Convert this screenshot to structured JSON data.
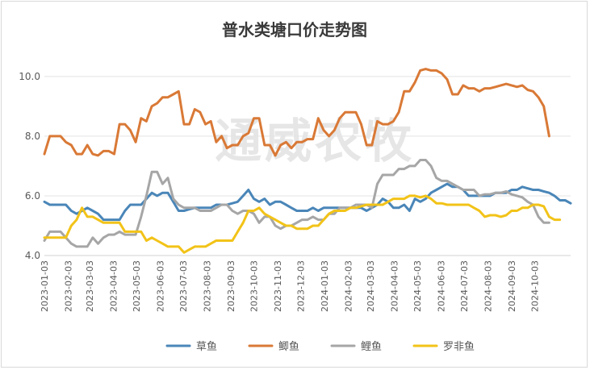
{
  "chart_data": {
    "type": "line",
    "title": "普水类塘口价走势图",
    "watermark": "通威农牧",
    "xlabel": "",
    "ylabel": "",
    "ylim": [
      4.0,
      10.4
    ],
    "yticks": [
      4.0,
      6.0,
      8.0,
      10.0
    ],
    "ytick_labels": [
      "4.0",
      "6.0",
      "8.0",
      "10.0"
    ],
    "grid": true,
    "legend_position": "bottom",
    "x_start": "2023-01-03",
    "x_interval_days": 7,
    "xtick_labels": [
      "2023-01-03",
      "2023-02-03",
      "2023-03-03",
      "2023-04-03",
      "2023-05-03",
      "2023-06-03",
      "2023-07-03",
      "2023-08-03",
      "2023-09-03",
      "2023-10-03",
      "2023-11-03",
      "2023-12-03",
      "2024-01-03",
      "2024-02-03",
      "2024-03-03",
      "2024-04-03",
      "2024-05-03",
      "2024-06-03",
      "2024-07-03",
      "2024-08-03",
      "2024-09-03",
      "2024-10-03"
    ],
    "xtick_dates": [
      "2023-01-03",
      "2023-02-03",
      "2023-03-03",
      "2023-04-03",
      "2023-05-03",
      "2023-06-03",
      "2023-07-03",
      "2023-08-03",
      "2023-09-03",
      "2023-10-03",
      "2023-11-03",
      "2023-12-03",
      "2024-01-03",
      "2024-02-03",
      "2024-03-03",
      "2024-04-03",
      "2024-05-03",
      "2024-06-03",
      "2024-07-03",
      "2024-08-03",
      "2024-09-03",
      "2024-10-03"
    ],
    "series": [
      {
        "name": "草鱼",
        "color": "#4a86b8",
        "values": [
          5.8,
          5.7,
          5.7,
          5.7,
          5.7,
          5.5,
          5.4,
          5.5,
          5.6,
          5.5,
          5.4,
          5.2,
          5.2,
          5.2,
          5.2,
          5.5,
          5.7,
          5.7,
          5.7,
          5.9,
          6.1,
          6.0,
          6.1,
          6.1,
          5.8,
          5.5,
          5.5,
          5.55,
          5.6,
          5.6,
          5.6,
          5.6,
          5.7,
          5.7,
          5.7,
          5.75,
          5.8,
          6.0,
          6.2,
          5.9,
          5.8,
          5.9,
          5.7,
          5.8,
          5.8,
          5.7,
          5.6,
          5.5,
          5.5,
          5.5,
          5.6,
          5.5,
          5.6,
          5.6,
          5.6,
          5.6,
          5.6,
          5.6,
          5.6,
          5.6,
          5.5,
          5.6,
          5.7,
          5.9,
          5.8,
          5.6,
          5.6,
          5.7,
          5.5,
          5.9,
          5.8,
          5.9,
          6.1,
          6.2,
          6.3,
          6.4,
          6.3,
          6.3,
          6.2,
          6.0,
          6.0,
          6.0,
          6.0,
          6.0,
          6.1,
          6.1,
          6.1,
          6.2,
          6.2,
          6.3,
          6.25,
          6.2,
          6.2,
          6.15,
          6.1,
          6.0,
          5.85,
          5.85,
          5.75
        ]
      },
      {
        "name": "鲫鱼",
        "color": "#d97936",
        "values": [
          7.4,
          8.0,
          8.0,
          8.0,
          7.8,
          7.7,
          7.4,
          7.4,
          7.7,
          7.4,
          7.35,
          7.5,
          7.5,
          7.4,
          8.4,
          8.4,
          8.2,
          7.8,
          8.6,
          8.5,
          9.0,
          9.1,
          9.3,
          9.3,
          9.4,
          9.5,
          8.4,
          8.4,
          8.9,
          8.8,
          8.4,
          8.5,
          7.8,
          8.0,
          7.6,
          7.7,
          7.7,
          8.0,
          8.1,
          8.6,
          8.6,
          7.7,
          7.7,
          7.35,
          7.7,
          7.8,
          7.6,
          7.8,
          7.8,
          7.9,
          7.9,
          8.6,
          8.2,
          8.0,
          8.2,
          8.6,
          8.8,
          8.8,
          8.8,
          8.4,
          7.7,
          7.7,
          8.5,
          8.4,
          8.4,
          8.5,
          8.8,
          9.5,
          9.5,
          9.8,
          10.2,
          10.25,
          10.2,
          10.2,
          10.1,
          9.9,
          9.4,
          9.4,
          9.7,
          9.6,
          9.6,
          9.5,
          9.6,
          9.6,
          9.65,
          9.7,
          9.75,
          9.7,
          9.65,
          9.7,
          9.55,
          9.5,
          9.3,
          9.0,
          8.0
        ]
      },
      {
        "name": "鲤鱼",
        "color": "#a6a6a6",
        "values": [
          4.5,
          4.8,
          4.8,
          4.8,
          4.6,
          4.4,
          4.3,
          4.3,
          4.3,
          4.6,
          4.4,
          4.6,
          4.7,
          4.7,
          4.8,
          4.7,
          4.7,
          4.7,
          5.3,
          6.0,
          6.8,
          6.8,
          6.4,
          6.6,
          5.9,
          5.7,
          5.6,
          5.6,
          5.6,
          5.5,
          5.5,
          5.5,
          5.6,
          5.7,
          5.7,
          5.5,
          5.4,
          5.5,
          5.5,
          5.4,
          5.1,
          5.3,
          5.3,
          5.0,
          4.9,
          5.0,
          5.0,
          5.1,
          5.2,
          5.2,
          5.3,
          5.2,
          5.2,
          5.4,
          5.4,
          5.6,
          5.6,
          5.6,
          5.7,
          5.7,
          5.7,
          5.6,
          6.4,
          6.7,
          6.7,
          6.7,
          6.9,
          6.9,
          7.0,
          7.0,
          7.2,
          7.2,
          7.0,
          6.6,
          6.5,
          6.5,
          6.4,
          6.3,
          6.2,
          6.2,
          6.2,
          6.0,
          6.05,
          6.05,
          6.1,
          6.1,
          6.15,
          6.05,
          6.0,
          5.95,
          5.8,
          5.7,
          5.3,
          5.1,
          5.1
        ]
      },
      {
        "name": "罗非鱼",
        "color": "#f2c318",
        "values": [
          4.6,
          4.6,
          4.6,
          4.6,
          4.6,
          5.0,
          5.2,
          5.6,
          5.3,
          5.3,
          5.2,
          5.1,
          5.1,
          5.1,
          5.1,
          4.8,
          4.8,
          4.8,
          4.8,
          4.5,
          4.6,
          4.5,
          4.4,
          4.3,
          4.3,
          4.3,
          4.1,
          4.2,
          4.3,
          4.3,
          4.3,
          4.4,
          4.5,
          4.5,
          4.5,
          4.5,
          4.8,
          5.1,
          5.5,
          5.5,
          5.6,
          5.4,
          5.3,
          5.2,
          5.1,
          5.0,
          5.0,
          4.9,
          4.9,
          4.9,
          5.0,
          5.0,
          5.2,
          5.4,
          5.5,
          5.5,
          5.5,
          5.6,
          5.6,
          5.65,
          5.7,
          5.7,
          5.7,
          5.7,
          5.8,
          5.9,
          5.9,
          5.9,
          6.0,
          6.0,
          5.95,
          6.0,
          5.9,
          5.75,
          5.75,
          5.7,
          5.7,
          5.7,
          5.7,
          5.7,
          5.6,
          5.5,
          5.3,
          5.35,
          5.35,
          5.3,
          5.35,
          5.5,
          5.5,
          5.6,
          5.6,
          5.7,
          5.7,
          5.65,
          5.3,
          5.2,
          5.2
        ]
      }
    ]
  }
}
